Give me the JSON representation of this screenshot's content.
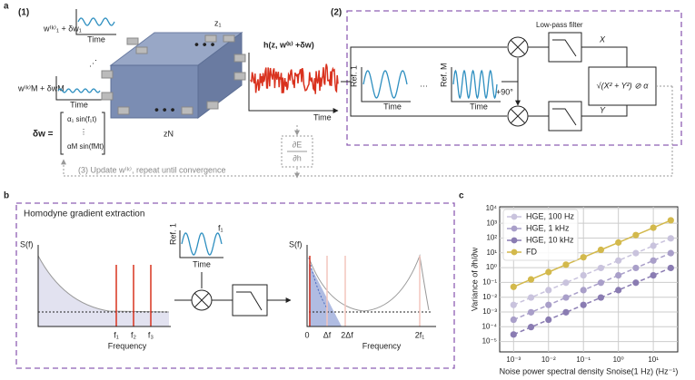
{
  "panel_a": {
    "label": "a",
    "step1": "(1)",
    "w1": "w⁽ᵏ⁾₁ + δw₁",
    "time1": "Time",
    "wM": "w⁽ᵏ⁾M + δwM",
    "timeM": "Time",
    "dw": "δw =",
    "m1": "α₁ sin(f₁t)",
    "mdots": "⋮",
    "mM": "αM sin(fMt)",
    "z1": "z₁",
    "zN": "zN",
    "h": "h(z, w⁽ᵏ⁾ +δw)",
    "timeh": "Time",
    "dEdh_top": "∂E",
    "dEdh_bot": "∂h",
    "step3": "(3) Update w⁽ᵏ⁾, repeat until convergence",
    "step2": "(2)",
    "lpf": "Low-pass filter",
    "ref1": "Ref. 1",
    "time_r1": "Time",
    "refM": "Ref. M",
    "time_rM": "Time",
    "phase": "+90°",
    "X": "X",
    "Y": "Y",
    "out": "√(X² + Y²) ⊘ α"
  },
  "panel_b": {
    "label": "b",
    "title": "Homodyne gradient extraction",
    "sf1": "S(f)",
    "f1": "f₁",
    "f2": "f₂",
    "f3": "f₃",
    "freq1": "Frequency",
    "ref": "Ref. 1",
    "reff": "f₁",
    "time": "Time",
    "sf2": "S(f)",
    "zero": "0",
    "df": "Δf",
    "df2": "2Δf",
    "f1x2": "2f₁",
    "freq2": "Frequency"
  },
  "panel_c": {
    "label": "c"
  },
  "chart_data": {
    "type": "scatter",
    "x_label": "Noise power spectral density Snoise(1 Hz) (Hz⁻¹)",
    "y_label": "Variance of ∂h/∂w",
    "x": [
      0.001,
      0.00316,
      0.01,
      0.0316,
      0.1,
      0.316,
      1,
      3.16,
      10,
      31.6
    ],
    "series": [
      {
        "name": "HGE, 100 Hz",
        "color": "#c9c3dd",
        "dashed": true,
        "values": [
          0.003,
          0.0095,
          0.03,
          0.095,
          0.3,
          0.95,
          3,
          9.5,
          30,
          95
        ]
      },
      {
        "name": "HGE, 1 kHz",
        "color": "#a99fc9",
        "dashed": true,
        "values": [
          0.0003,
          0.00095,
          0.003,
          0.0095,
          0.03,
          0.095,
          0.3,
          0.95,
          3,
          9.5
        ]
      },
      {
        "name": "HGE, 10 kHz",
        "color": "#8a7cb2",
        "dashed": true,
        "values": [
          3e-05,
          9.5e-05,
          0.0003,
          0.00095,
          0.003,
          0.0095,
          0.03,
          0.095,
          0.3,
          0.95
        ]
      },
      {
        "name": "FD",
        "color": "#d3b94c",
        "dashed": false,
        "values": [
          0.05,
          0.158,
          0.5,
          1.58,
          5,
          15.8,
          50,
          158,
          500,
          1580
        ]
      }
    ],
    "log_x": true,
    "log_y": true,
    "xlim": [
      0.0004,
      50
    ],
    "ylim": [
      2e-06,
      13000
    ],
    "xticks": [
      {
        "value": 0.001,
        "label": "10⁻³"
      },
      {
        "value": 0.01,
        "label": "10⁻²"
      },
      {
        "value": 0.1,
        "label": "10⁻¹"
      },
      {
        "value": 1,
        "label": "10⁰"
      },
      {
        "value": 10,
        "label": "10¹"
      }
    ],
    "yticks": [
      {
        "value": 1e-05,
        "label": "10⁻⁵"
      },
      {
        "value": 0.0001,
        "label": "10⁻⁴"
      },
      {
        "value": 0.001,
        "label": "10⁻³"
      },
      {
        "value": 0.01,
        "label": "10⁻²"
      },
      {
        "value": 0.1,
        "label": "10⁻¹"
      },
      {
        "value": 1,
        "label": "10⁰"
      },
      {
        "value": 10,
        "label": "10¹"
      },
      {
        "value": 100,
        "label": "10²"
      },
      {
        "value": 1000,
        "label": "10³"
      },
      {
        "value": 10000,
        "label": "10⁴"
      }
    ],
    "grid": true,
    "legend": "top-left"
  }
}
